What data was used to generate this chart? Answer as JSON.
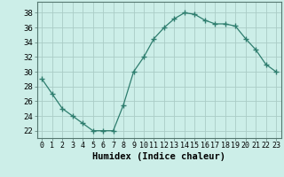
{
  "x": [
    0,
    1,
    2,
    3,
    4,
    5,
    6,
    7,
    8,
    9,
    10,
    11,
    12,
    13,
    14,
    15,
    16,
    17,
    18,
    19,
    20,
    21,
    22,
    23
  ],
  "y": [
    29,
    27,
    25,
    24,
    23,
    22,
    22,
    22,
    25.5,
    30,
    32,
    34.5,
    36,
    37.2,
    38,
    37.8,
    37,
    36.5,
    36.5,
    36.2,
    34.5,
    33,
    31,
    30
  ],
  "line_color": "#2e7d6e",
  "marker": "+",
  "marker_size": 4,
  "bg_color": "#cceee8",
  "grid_color": "#aaccc6",
  "xlabel": "Humidex (Indice chaleur)",
  "xlabel_fontsize": 7.5,
  "yticks": [
    22,
    24,
    26,
    28,
    30,
    32,
    34,
    36,
    38
  ],
  "xtick_labels": [
    "0",
    "1",
    "2",
    "3",
    "4",
    "5",
    "6",
    "7",
    "8",
    "9",
    "10",
    "11",
    "12",
    "13",
    "14",
    "15",
    "16",
    "17",
    "18",
    "19",
    "20",
    "21",
    "22",
    "23"
  ],
  "ylim": [
    21.0,
    39.5
  ],
  "xlim": [
    -0.5,
    23.5
  ],
  "tick_fontsize": 6.0,
  "ytick_fontsize": 6.5
}
